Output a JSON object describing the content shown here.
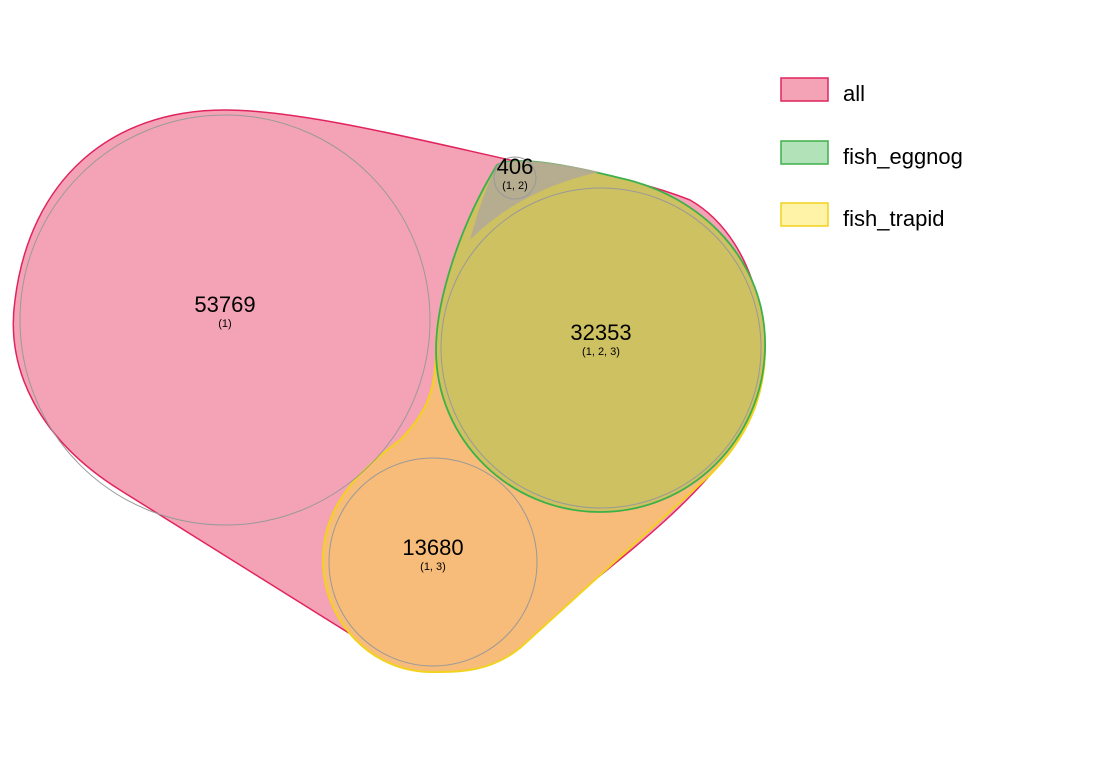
{
  "colors": {
    "all_fill": "#F4A3B6",
    "all_stroke": "#E0245E",
    "eggnog_fill": "#B2E2B8",
    "eggnog_stroke": "#3DB04A",
    "trapid_fill": "#FFF3A8",
    "trapid_stroke": "#F2D21E",
    "overlap_1_3": "#F7BC79",
    "overlap_1_2": "#B4AB96",
    "overlap_1_2_3": "#CEC162",
    "circle_outline": "#999999"
  },
  "legend": [
    {
      "label": "all",
      "fill": "#F4A3B6",
      "stroke": "#E0245E"
    },
    {
      "label": "fish_eggnog",
      "fill": "#B2E2B8",
      "stroke": "#3DB04A"
    },
    {
      "label": "fish_trapid",
      "fill": "#FFF3A8",
      "stroke": "#F2D21E"
    }
  ],
  "regions": {
    "r1": {
      "count": "53769",
      "sets": "(1)"
    },
    "r12": {
      "count": "406",
      "sets": "(1, 2)"
    },
    "r123": {
      "count": "32353",
      "sets": "(1, 2, 3)"
    },
    "r13": {
      "count": "13680",
      "sets": "(1, 3)"
    }
  }
}
